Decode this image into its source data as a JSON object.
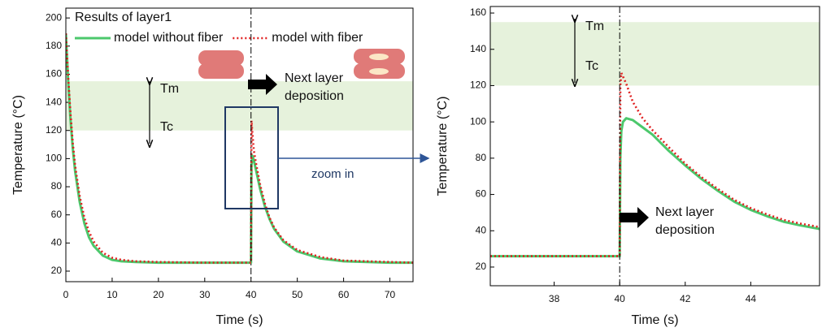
{
  "chart_data": [
    {
      "type": "line",
      "title": "Results of layer1",
      "x_label": "Time (s)",
      "y_label": "Temperature (°C)",
      "x": [
        0,
        0.5,
        1,
        1.5,
        2,
        3,
        4,
        5,
        6,
        8,
        10,
        12,
        15,
        20,
        30,
        40,
        40.1,
        40.3,
        40.6,
        41,
        42,
        43,
        44,
        45,
        47,
        50,
        55,
        60,
        70,
        75
      ],
      "series": [
        {
          "name": "model without fiber",
          "color": "#4cc86c",
          "style": "solid",
          "values": [
            189,
            155,
            128,
            107,
            91,
            69,
            54,
            44,
            38,
            31,
            28,
            27,
            26.5,
            26,
            26,
            26,
            95,
            102,
            99,
            93,
            78,
            66,
            57,
            50,
            41,
            34,
            29,
            27,
            26,
            26
          ]
        },
        {
          "name": "model with fiber",
          "color": "#e02020",
          "style": "dotted",
          "values": [
            189,
            158,
            132,
            111,
            95,
            73,
            58,
            48,
            41,
            33,
            29.5,
            28,
            27,
            26.5,
            26,
            26,
            127,
            118,
            106,
            98,
            81,
            68,
            58,
            51,
            42,
            35,
            30,
            27.5,
            26.5,
            26
          ]
        }
      ],
      "xlim": [
        0,
        75
      ],
      "ylim": [
        12.5,
        207
      ],
      "xticks": [
        0,
        10,
        20,
        30,
        40,
        50,
        60,
        70
      ],
      "yticks": [
        20,
        40,
        60,
        80,
        100,
        120,
        140,
        160,
        180,
        200
      ],
      "legend": "upper left",
      "shaded_range": [
        120,
        155
      ],
      "vline": 40,
      "annotations": {
        "range_top": "Tm",
        "range_bottom": "Tc",
        "event": [
          "Next layer",
          "deposition"
        ],
        "zoom": "zoom in"
      }
    },
    {
      "type": "line",
      "x_label": "Time (s)",
      "y_label": "Temperature (°C)",
      "x": [
        36.05,
        40,
        40.02,
        40.05,
        40.1,
        40.2,
        40.4,
        40.7,
        41,
        41.5,
        42,
        42.5,
        43,
        43.5,
        44,
        44.5,
        45,
        45.5,
        46.1
      ],
      "series": [
        {
          "color": "#4cc86c",
          "style": "solid",
          "values": [
            26,
            26,
            80,
            95,
            100,
            102,
            101,
            97,
            93,
            84,
            76,
            68.5,
            62,
            56,
            51.5,
            48,
            45,
            43,
            41
          ]
        },
        {
          "color": "#e02020",
          "style": "dotted",
          "values": [
            26,
            26,
            120,
            127,
            125,
            121,
            111,
            102,
            95.5,
            86,
            77,
            69.5,
            63,
            57,
            52.5,
            49,
            46,
            44,
            42
          ]
        }
      ],
      "xlim": [
        36.05,
        46.1
      ],
      "ylim": [
        9.7,
        163.6
      ],
      "xticks": [
        38,
        40,
        42,
        44
      ],
      "yticks": [
        20,
        40,
        60,
        80,
        100,
        120,
        140,
        160
      ],
      "shaded_range": [
        120,
        155
      ],
      "vline": 40,
      "annotations": {
        "range_top": "Tm",
        "range_bottom": "Tc",
        "event": [
          "Next layer",
          "deposition"
        ]
      }
    }
  ]
}
